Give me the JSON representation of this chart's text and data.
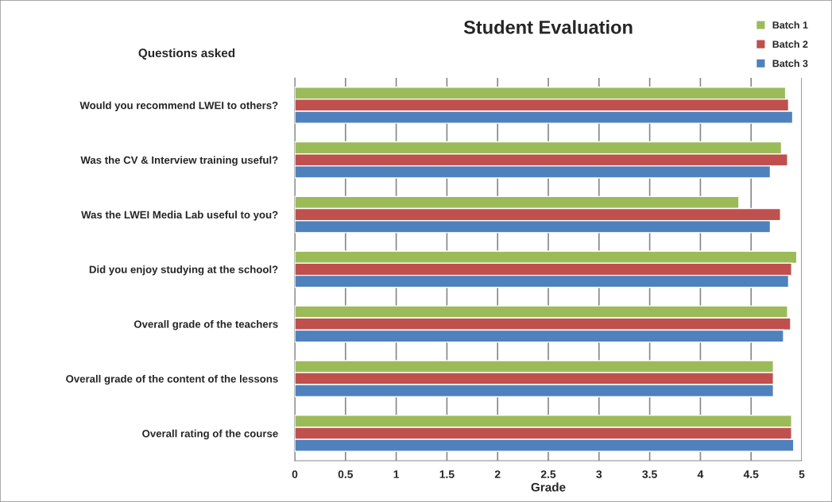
{
  "chart_data": {
    "type": "bar",
    "orientation": "horizontal",
    "title": "Student Evaluation",
    "xlabel": "Grade",
    "ylabel": "Questions asked",
    "categories": [
      "Would you recommend LWEI to others?",
      "Was the CV & Interview training useful?",
      "Was the LWEI Media Lab useful to you?",
      "Did you enjoy studying at the school?",
      "Overall grade of the teachers",
      "Overall grade of the content of the lessons",
      "Overall rating of the course"
    ],
    "series": [
      {
        "name": "Batch 1",
        "color": "#9bbb59",
        "values": [
          4.84,
          4.8,
          4.38,
          4.95,
          4.86,
          4.72,
          4.9
        ]
      },
      {
        "name": "Batch 2",
        "color": "#c0504d",
        "values": [
          4.87,
          4.86,
          4.79,
          4.9,
          4.89,
          4.72,
          4.9
        ]
      },
      {
        "name": "Batch 3",
        "color": "#4f81bd",
        "values": [
          4.91,
          4.69,
          4.69,
          4.87,
          4.82,
          4.72,
          4.92
        ]
      }
    ],
    "xlim": [
      0,
      5
    ],
    "xticks": [
      0,
      0.5,
      1,
      1.5,
      2,
      2.5,
      3,
      3.5,
      4,
      4.5,
      5
    ],
    "grid": "x",
    "legend": "top right"
  }
}
